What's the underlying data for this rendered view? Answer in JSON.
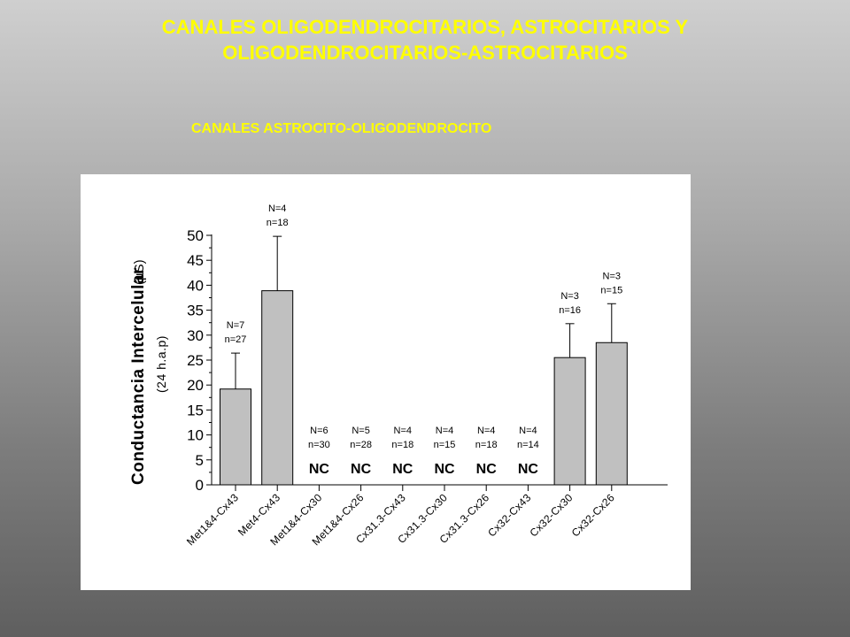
{
  "header": {
    "title_line1": "CANALES OLIGODENDROCITARIOS, ASTROCITARIOS Y",
    "title_line2": "OLIGODENDROCITARIOS-ASTROCITARIOS",
    "subtitle": "CANALES ASTROCITO-OLIGODENDROCITO"
  },
  "chart_data": {
    "type": "bar",
    "title": "",
    "ylabel": "Conductancia Intercelular",
    "ylabel_unit": "(µS)",
    "ylabel_sub": "(24 h.a.p)",
    "ylim": [
      0,
      50
    ],
    "yticks": [
      "0",
      "5",
      "10",
      "15",
      "20",
      "25",
      "30",
      "35",
      "40",
      "45",
      "50"
    ],
    "categories": [
      "Met1&4-Cx43",
      "Met4-Cx43",
      "Met1&4-Cx30",
      "Met1&4-Cx26",
      "Cx31.3-Cx43",
      "Cx31.3-Cx30",
      "Cx31.3-Cx26",
      "Cx32-Cx43",
      "Cx32-Cx30",
      "Cx32-Cx26"
    ],
    "values": [
      19.2,
      38.9,
      0,
      0,
      0,
      0,
      0,
      0,
      25.5,
      28.5
    ],
    "errors": [
      7.2,
      10.9,
      0,
      0,
      0,
      0,
      0,
      0,
      6.8,
      7.8
    ],
    "N_labels": [
      "N=7",
      "N=4",
      "N=6",
      "N=5",
      "N=4",
      "N=4",
      "N=4",
      "N=4",
      "N=3",
      "N=3"
    ],
    "n_labels": [
      "n=27",
      "n=18",
      "n=30",
      "n=28",
      "n=18",
      "n=15",
      "n=18",
      "n=14",
      "n=16",
      "n=15"
    ],
    "bar_labels": [
      "",
      "",
      "NC",
      "NC",
      "NC",
      "NC",
      "NC",
      "NC",
      "",
      ""
    ],
    "bar_color": "#c0c0c0",
    "grid": false
  }
}
